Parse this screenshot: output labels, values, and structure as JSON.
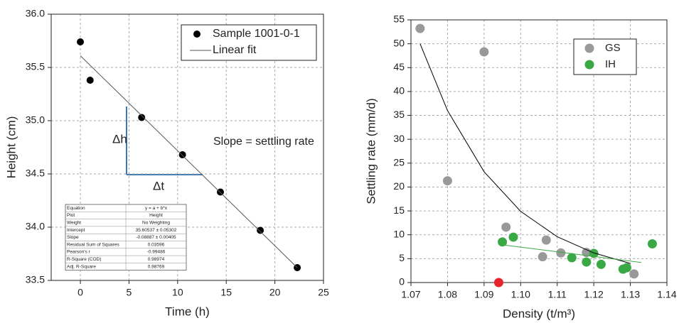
{
  "chart_data": [
    {
      "type": "scatter",
      "xlabel": "Time (h)",
      "ylabel": "Height (cm)",
      "xlim": [
        -3,
        25
      ],
      "xticks": [
        0,
        5,
        10,
        15,
        20,
        25
      ],
      "ylim": [
        33.5,
        36.0
      ],
      "yticks": [
        33.5,
        {
          "value": 34,
          "label": "34.0"
        },
        34.5,
        {
          "value": 35,
          "label": "35.0"
        },
        35.5,
        {
          "value": 36,
          "label": "36.0"
        }
      ],
      "grid": true,
      "legend": "upper right",
      "series": [
        {
          "name": "Sample 1001-0-1",
          "color": "#000000",
          "line": false,
          "x": [
            0,
            1,
            6.3,
            10.5,
            14.4,
            18.5,
            22.3
          ],
          "values": [
            35.74,
            35.38,
            35.03,
            34.68,
            34.33,
            33.97,
            33.62
          ]
        },
        {
          "name": "Linear fit",
          "color": "#555555",
          "line": true,
          "x": [
            0,
            22.3
          ],
          "values": [
            35.61,
            33.62
          ]
        }
      ],
      "annotations": [
        "Δh",
        "Δt",
        "Slope = settling rate"
      ],
      "table": {
        "rows": [
          [
            "Equation",
            "y = a + b*x"
          ],
          [
            "Plot",
            "Height"
          ],
          [
            "Weight",
            "No Weighting"
          ],
          [
            "Intercept",
            "35.60537 ± 0.05302"
          ],
          [
            "Slope",
            "-0.08887 ± 0.00405"
          ],
          [
            "Residual Sum of Squares",
            "0.03596"
          ],
          [
            "Pearson's r",
            "-0.99486"
          ],
          [
            "R-Square (COD)",
            "0.98974"
          ],
          [
            "Adj. R-Square",
            "0.98769"
          ]
        ]
      }
    },
    {
      "type": "scatter",
      "xlabel": "Density (t/m³)",
      "ylabel": "Settling rate (mm/d)",
      "xlim": [
        1.07,
        1.14
      ],
      "xticks": [
        1.07,
        1.08,
        1.09,
        {
          "value": 1.1,
          "label": "1.10"
        },
        1.11,
        1.12,
        1.13,
        1.14
      ],
      "ylim": [
        0,
        55
      ],
      "yticks": [
        0,
        5,
        10,
        15,
        20,
        25,
        30,
        35,
        40,
        45,
        50,
        55
      ],
      "grid": true,
      "legend": "upper right",
      "series": [
        {
          "name": "GS",
          "color": "#999999",
          "line": false,
          "x": [
            1.0725,
            1.08,
            1.09,
            1.096,
            1.106,
            1.107,
            1.111,
            1.118,
            1.131
          ],
          "values": [
            53.2,
            21.3,
            48.3,
            11.6,
            5.4,
            8.9,
            6.2,
            6.3,
            1.8
          ]
        },
        {
          "name": "IH",
          "color": "#3aa845",
          "line": false,
          "x": [
            1.095,
            1.098,
            1.114,
            1.118,
            1.12,
            1.122,
            1.128,
            1.129,
            1.136
          ],
          "values": [
            8.5,
            9.5,
            5.2,
            4.3,
            6.1,
            3.8,
            2.8,
            3.1,
            8.1
          ]
        },
        {
          "color": "#e8232a",
          "line": false,
          "x": [
            1.094
          ],
          "values": [
            0
          ]
        },
        {
          "color": "#000000",
          "line": true,
          "x": [
            1.0725,
            1.08,
            1.09,
            1.1,
            1.11,
            1.12,
            1.13
          ],
          "values": [
            50,
            36.0,
            23.2,
            14.9,
            9.6,
            6.2,
            4.0
          ]
        },
        {
          "color": "#3aa845",
          "line": true,
          "x": [
            1.095,
            1.133
          ],
          "values": [
            7.9,
            4.2
          ]
        }
      ]
    }
  ]
}
